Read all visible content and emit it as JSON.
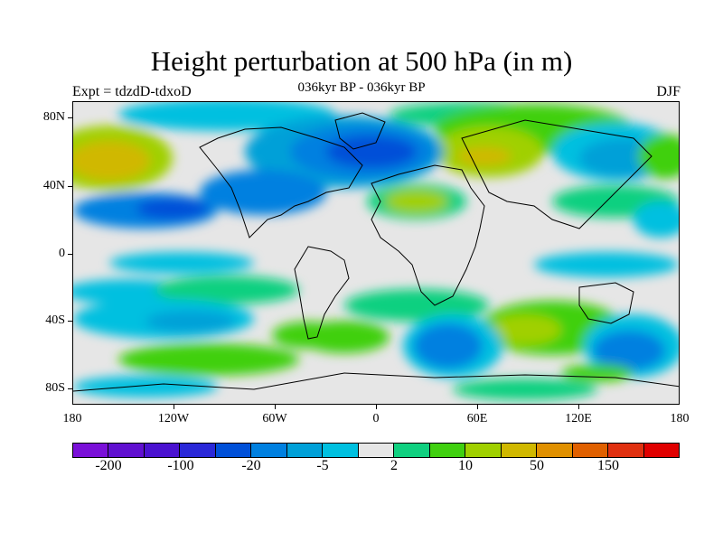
{
  "title": "Height perturbation at 500 hPa (in m)",
  "subtitle": "036kyr BP - 036kyr BP",
  "left_label": "Expt = tdzdD-tdxoD",
  "right_label": "DJF",
  "lat_labels": [
    "80N",
    "40N",
    "0",
    "40S",
    "80S"
  ],
  "lon_labels": [
    "180",
    "120W",
    "60W",
    "0",
    "60E",
    "120E",
    "180"
  ],
  "colorbar": {
    "colors": [
      "#7a10d8",
      "#6010d0",
      "#4a12d0",
      "#2a28d8",
      "#0050d8",
      "#0080e0",
      "#00a0d8",
      "#00c0e0",
      "#e6e6e6",
      "#10d080",
      "#40d010",
      "#a0d000",
      "#d0b800",
      "#e09000",
      "#e06000",
      "#e03010",
      "#e00000"
    ],
    "labels": [
      "-200",
      "-100",
      "-20",
      "-5",
      "2",
      "10",
      "50",
      "150"
    ]
  },
  "map_data": {
    "levels": [
      "-200",
      "-150",
      "-100",
      "-50",
      "-20",
      "-10",
      "-5",
      "-2",
      "2",
      "5",
      "10",
      "20",
      "50",
      "100",
      "150",
      "200"
    ],
    "background_color": "#e6e6e6"
  }
}
